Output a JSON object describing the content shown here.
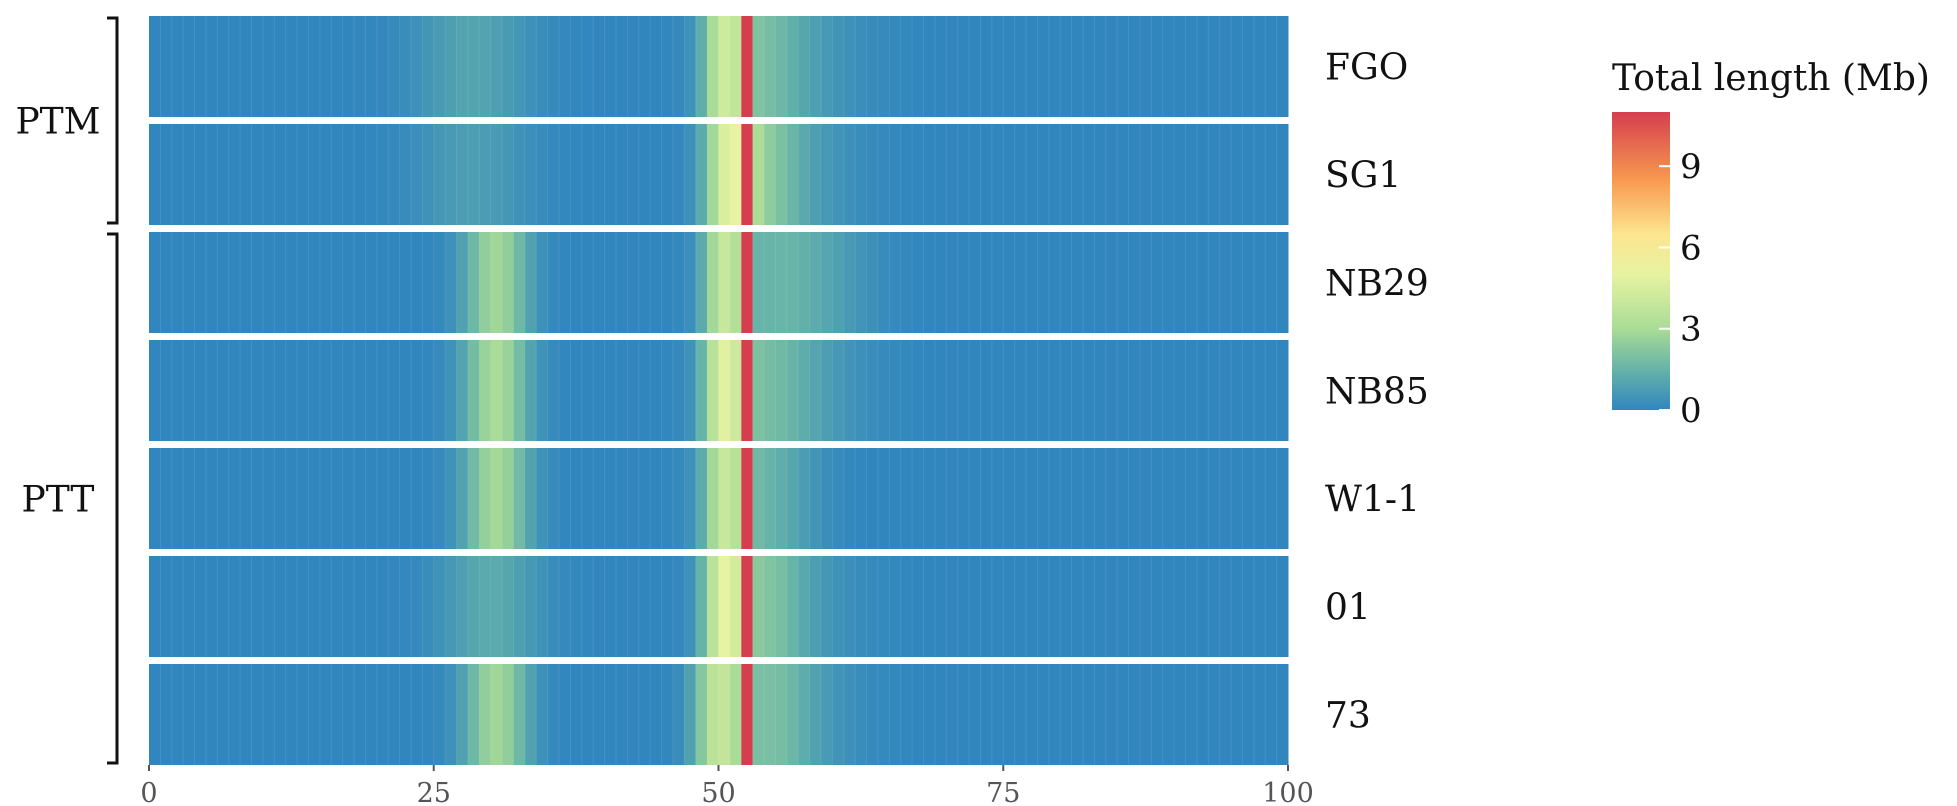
{
  "chart_data": {
    "type": "heatmap",
    "title": "",
    "xlabel": "",
    "ylabel": "",
    "xlim": [
      0,
      100
    ],
    "x_ticks": [
      0,
      25,
      50,
      75,
      100
    ],
    "bin_width": 1,
    "rows": [
      "FGO",
      "SG1",
      "NB29",
      "NB85",
      "W1-1",
      "01",
      "73"
    ],
    "groups": [
      {
        "name": "PTM",
        "rows": [
          "FGO",
          "SG1"
        ]
      },
      {
        "name": "PTT",
        "rows": [
          "NB29",
          "NB85",
          "W1-1",
          "01",
          "73"
        ]
      }
    ],
    "color_scale": {
      "title": "Total length (Mb)",
      "ticks": [
        0,
        3,
        6,
        9
      ],
      "range": [
        0,
        11
      ],
      "stops": [
        {
          "value": 0,
          "color": "#3186be"
        },
        {
          "value": 1.5,
          "color": "#66b3a8"
        },
        {
          "value": 3,
          "color": "#a9dc96"
        },
        {
          "value": 5,
          "color": "#e6f3a2"
        },
        {
          "value": 6.5,
          "color": "#fde58f"
        },
        {
          "value": 8.5,
          "color": "#f7994f"
        },
        {
          "value": 11,
          "color": "#d53e4f"
        }
      ]
    },
    "peaks": [
      {
        "name": "FGO",
        "peaks": [
          {
            "center": 28.5,
            "height": 1.0,
            "sigma": 3.5
          },
          {
            "center": 50.5,
            "height": 3.2,
            "sigma": 1.3
          },
          {
            "center": 53.5,
            "height": 1.6,
            "sigma": 2.8
          },
          {
            "center": 58.0,
            "height": 0.5,
            "sigma": 4.0
          }
        ]
      },
      {
        "name": "SG1",
        "peaks": [
          {
            "center": 28.5,
            "height": 0.8,
            "sigma": 3.5
          },
          {
            "center": 51.0,
            "height": 4.0,
            "sigma": 1.5
          },
          {
            "center": 54.0,
            "height": 1.8,
            "sigma": 2.5
          },
          {
            "center": 57.5,
            "height": 0.5,
            "sigma": 4.0
          }
        ]
      },
      {
        "name": "NB29",
        "peaks": [
          {
            "center": 30.5,
            "height": 2.8,
            "sigma": 2.0
          },
          {
            "center": 50.5,
            "height": 3.5,
            "sigma": 1.3
          },
          {
            "center": 55.0,
            "height": 1.4,
            "sigma": 3.0
          },
          {
            "center": 60.0,
            "height": 0.6,
            "sigma": 3.0
          }
        ]
      },
      {
        "name": "NB85",
        "peaks": [
          {
            "center": 30.5,
            "height": 3.0,
            "sigma": 2.0
          },
          {
            "center": 50.5,
            "height": 4.0,
            "sigma": 1.3
          },
          {
            "center": 54.0,
            "height": 1.6,
            "sigma": 3.0
          },
          {
            "center": 59.0,
            "height": 0.5,
            "sigma": 3.5
          }
        ]
      },
      {
        "name": "W1-1",
        "peaks": [
          {
            "center": 30.5,
            "height": 2.9,
            "sigma": 2.0
          },
          {
            "center": 50.5,
            "height": 3.2,
            "sigma": 1.3
          },
          {
            "center": 54.0,
            "height": 1.5,
            "sigma": 3.0
          }
        ]
      },
      {
        "name": "01",
        "peaks": [
          {
            "center": 30.0,
            "height": 1.2,
            "sigma": 3.0
          },
          {
            "center": 50.5,
            "height": 4.2,
            "sigma": 1.3
          },
          {
            "center": 54.0,
            "height": 1.7,
            "sigma": 2.5
          },
          {
            "center": 57.0,
            "height": 0.5,
            "sigma": 4.0
          }
        ]
      },
      {
        "name": "73",
        "peaks": [
          {
            "center": 30.5,
            "height": 2.8,
            "sigma": 2.0
          },
          {
            "center": 50.0,
            "height": 3.5,
            "sigma": 1.5
          },
          {
            "center": 54.5,
            "height": 1.6,
            "sigma": 2.5
          },
          {
            "center": 58.0,
            "height": 0.5,
            "sigma": 3.5
          }
        ]
      }
    ],
    "hotspot": {
      "center": 52.5,
      "width": 1,
      "value": 11
    }
  }
}
